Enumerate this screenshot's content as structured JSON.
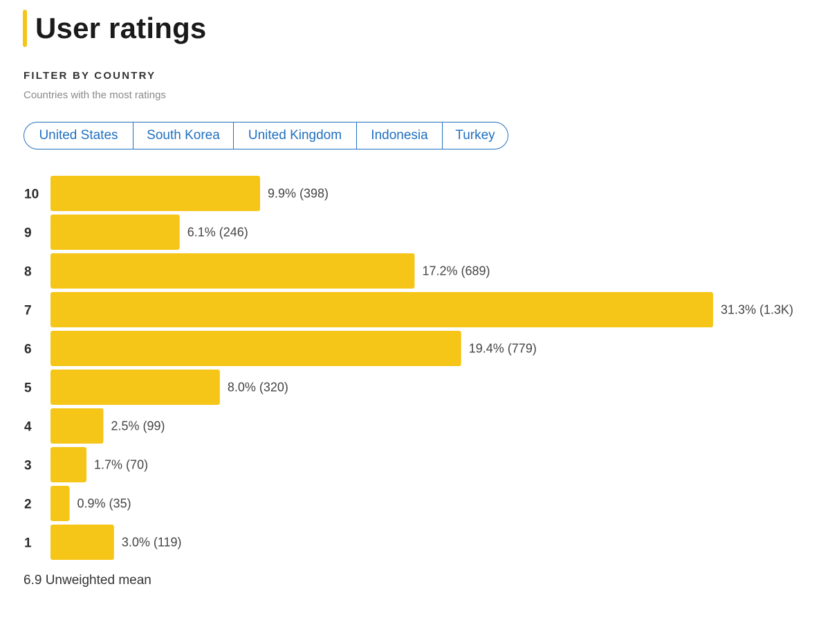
{
  "header": {
    "title": "User ratings"
  },
  "filter": {
    "heading": "FILTER BY COUNTRY",
    "subheading": "Countries with the most ratings",
    "countries": [
      "United States",
      "South Korea",
      "United Kingdom",
      "Indonesia",
      "Turkey"
    ]
  },
  "colors": {
    "accent": "#f5c518",
    "link": "#1f6fbf"
  },
  "chart_data": {
    "type": "bar",
    "orientation": "horizontal",
    "title": "User ratings",
    "categories": [
      "10",
      "9",
      "8",
      "7",
      "6",
      "5",
      "4",
      "3",
      "2",
      "1"
    ],
    "values": [
      9.9,
      6.1,
      17.2,
      31.3,
      19.4,
      8.0,
      2.5,
      1.7,
      0.9,
      3.0
    ],
    "counts": [
      "398",
      "246",
      "689",
      "1.3K",
      "779",
      "320",
      "99",
      "70",
      "35",
      "119"
    ],
    "labels": [
      "9.9% (398)",
      "6.1% (246)",
      "17.2% (689)",
      "31.3% (1.3K)",
      "19.4% (779)",
      "8.0% (320)",
      "2.5% (99)",
      "1.7% (70)",
      "0.9% (35)",
      "3.0% (119)"
    ],
    "xlabel": "",
    "ylabel": "",
    "unit": "%"
  },
  "summary": {
    "mean_text": "6.9 Unweighted mean"
  }
}
